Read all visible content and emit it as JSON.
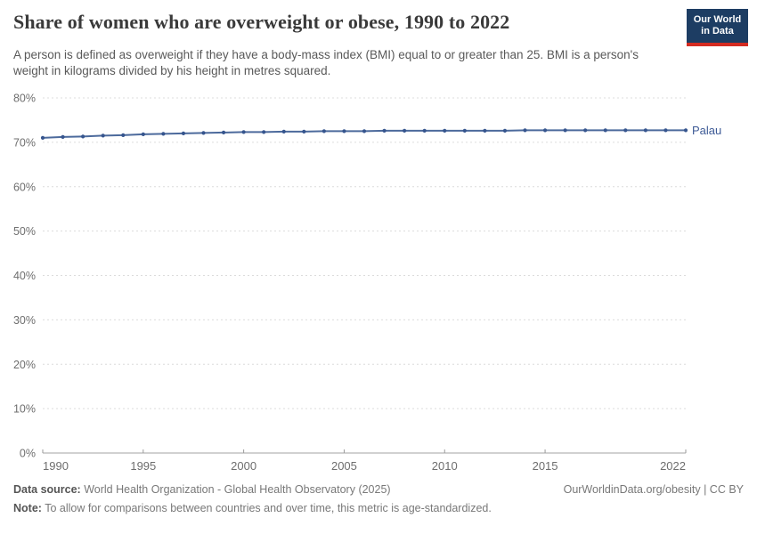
{
  "header": {
    "title": "Share of women who are overweight or obese, 1990 to 2022",
    "subtitle": "A person is defined as overweight if they have a body-mass index (BMI) equal to or greater than 25. BMI is a person's weight in kilograms divided by his height in metres squared.",
    "logo": {
      "line1": "Our World",
      "line2": "in Data",
      "bg_color": "#1d3d63",
      "accent_color": "#d42b21"
    }
  },
  "chart_data": {
    "type": "line",
    "title": "Share of women who are overweight or obese, 1990 to 2022",
    "x": [
      1990,
      1991,
      1992,
      1993,
      1994,
      1995,
      1996,
      1997,
      1998,
      1999,
      2000,
      2001,
      2002,
      2003,
      2004,
      2005,
      2006,
      2007,
      2008,
      2009,
      2010,
      2011,
      2012,
      2013,
      2014,
      2015,
      2016,
      2017,
      2018,
      2019,
      2020,
      2021,
      2022
    ],
    "series": [
      {
        "name": "Palau",
        "color": "#4C6A9C",
        "marker_color": "#36558e",
        "values": [
          71.0,
          71.2,
          71.3,
          71.5,
          71.6,
          71.8,
          71.9,
          72.0,
          72.1,
          72.2,
          72.3,
          72.3,
          72.4,
          72.4,
          72.5,
          72.5,
          72.5,
          72.6,
          72.6,
          72.6,
          72.6,
          72.6,
          72.6,
          72.6,
          72.7,
          72.7,
          72.7,
          72.7,
          72.7,
          72.7,
          72.7,
          72.7,
          72.7
        ]
      }
    ],
    "xlabel": "",
    "ylabel": "",
    "ylim": [
      0,
      80
    ],
    "yticks": [
      0,
      10,
      20,
      30,
      40,
      50,
      60,
      70,
      80
    ],
    "ytick_suffix": "%",
    "xticks": [
      1990,
      1995,
      2000,
      2005,
      2010,
      2015,
      2022
    ],
    "grid": "dashed",
    "legend_position": "end-of-line",
    "grid_color": "#dcdcdc",
    "axis_color": "#a3a3a3"
  },
  "footer": {
    "source_label": "Data source:",
    "source_text": " World Health Organization - Global Health Observatory (2025)",
    "rights": "OurWorldinData.org/obesity | CC BY",
    "note_label": "Note:",
    "note_text": " To allow for comparisons between countries and over time, this metric is age-standardized."
  }
}
